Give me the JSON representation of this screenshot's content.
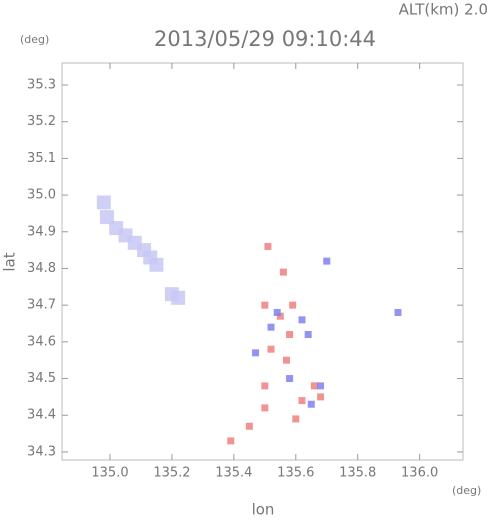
{
  "chart_data": {
    "type": "scatter",
    "title": "2013/05/29 09:10:44",
    "subtitle": "ALT(km) 2.0",
    "xlabel": "lon",
    "ylabel": "lat",
    "xunit": "(deg)",
    "yunit": "(deg)",
    "xlim": [
      134.845,
      136.14
    ],
    "ylim": [
      34.278,
      35.36
    ],
    "xticks": [
      {
        "value": 135,
        "label": "135.0"
      },
      135.2,
      135.4,
      135.6,
      135.8,
      {
        "value": 136,
        "label": "136.0"
      }
    ],
    "yticks": [
      34.3,
      34.4,
      34.5,
      34.6,
      34.7,
      34.8,
      34.9,
      {
        "value": 35,
        "label": "35.0"
      },
      35.1,
      35.2,
      35.3
    ],
    "series": [
      {
        "color": "#c8c8f4",
        "x": [
          134.98,
          134.99,
          135.02,
          135.05,
          135.08,
          135.11,
          135.13,
          135.15,
          135.2,
          135.22
        ],
        "values": [
          34.98,
          34.94,
          34.91,
          34.89,
          34.87,
          34.85,
          34.83,
          34.81,
          34.73,
          34.72
        ]
      },
      {
        "color": "#f08080",
        "x": [
          135.51,
          135.56,
          135.5,
          135.55,
          135.58,
          135.52,
          135.57,
          135.5,
          135.62,
          135.68,
          135.5,
          135.6,
          135.45,
          135.39,
          135.66,
          135.59
        ],
        "values": [
          34.86,
          34.79,
          34.7,
          34.67,
          34.62,
          34.58,
          34.55,
          34.48,
          34.44,
          34.45,
          34.42,
          34.39,
          34.37,
          34.33,
          34.48,
          34.7
        ]
      },
      {
        "color": "#8080f0",
        "x": [
          135.54,
          135.62,
          135.64,
          135.52,
          135.68,
          135.65,
          135.93,
          135.7,
          135.58,
          135.47
        ],
        "values": [
          34.68,
          34.66,
          34.62,
          34.64,
          34.48,
          34.43,
          34.68,
          34.82,
          34.5,
          34.57
        ]
      }
    ]
  }
}
